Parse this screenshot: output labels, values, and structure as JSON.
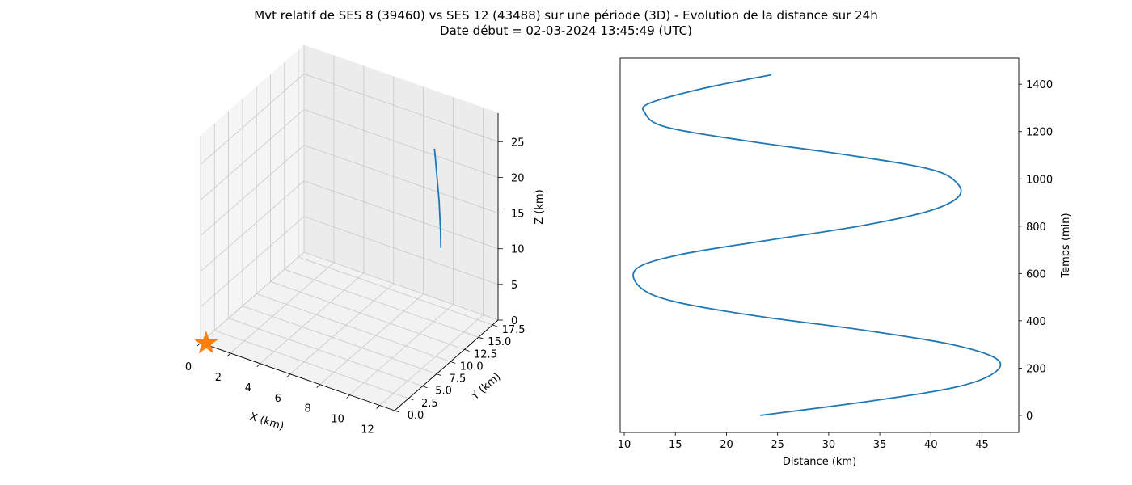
{
  "figure": {
    "title_line1": "Mvt relatif de SES 8 (39460) vs SES 12 (43488) sur une période (3D) - Evolution de la distance sur 24h",
    "title_line2": "Date début = 02-03-2024 13:45:49 (UTC)"
  },
  "chart_data": [
    {
      "type": "line",
      "projection": "3d",
      "xlabel": "X (km)",
      "ylabel": "Y (km)",
      "zlabel": "Z (km)",
      "xlim": [
        0,
        13
      ],
      "ylim": [
        0,
        18.5
      ],
      "zlim": [
        0,
        29
      ],
      "x_ticks": [
        0,
        2,
        4,
        6,
        8,
        10,
        12
      ],
      "x_tick_labels": [
        "0",
        "2",
        "4",
        "6",
        "8",
        "10",
        "12"
      ],
      "y_ticks": [
        0,
        2.5,
        5,
        7.5,
        10,
        12.5,
        15,
        17.5
      ],
      "y_tick_labels": [
        "0.0",
        "2.5",
        "5.0",
        "7.5",
        "10.0",
        "12.5",
        "15.0",
        "17.5"
      ],
      "z_ticks": [
        0,
        5,
        10,
        15,
        20,
        25
      ],
      "z_tick_labels": [
        "0",
        "5",
        "10",
        "15",
        "20",
        "25"
      ],
      "grid": true,
      "series": [
        {
          "color": "#1f77b4",
          "points": [
            {
              "x": 11.0,
              "y": 13.6,
              "z": 12.0
            },
            {
              "x": 11.1,
              "y": 13.3,
              "z": 14.5
            },
            {
              "x": 11.2,
              "y": 12.9,
              "z": 17.0
            },
            {
              "x": 11.3,
              "y": 12.5,
              "z": 19.5
            },
            {
              "x": 11.4,
              "y": 12.0,
              "z": 22.0
            },
            {
              "x": 11.5,
              "y": 11.5,
              "z": 24.5
            },
            {
              "x": 11.6,
              "y": 11.0,
              "z": 27.0
            },
            {
              "x": 11.7,
              "y": 10.6,
              "z": 28.5
            }
          ]
        }
      ],
      "marker": {
        "x": 0.3,
        "y": 0.2,
        "z": 0.0,
        "symbol": "star",
        "color": "#ff7f0e"
      }
    },
    {
      "type": "line",
      "xlabel": "Distance (km)",
      "ylabel": "Temps (min)",
      "xlim": [
        9.6,
        48.6
      ],
      "ylim": [
        -72,
        1510
      ],
      "x_ticks": [
        10,
        15,
        20,
        25,
        30,
        35,
        40,
        45
      ],
      "x_tick_labels": [
        "10",
        "15",
        "20",
        "25",
        "30",
        "35",
        "40",
        "45"
      ],
      "y_ticks": [
        0,
        200,
        400,
        600,
        800,
        1000,
        1200,
        1400
      ],
      "y_tick_labels": [
        "0",
        "200",
        "400",
        "600",
        "800",
        "1000",
        "1200",
        "1400"
      ],
      "y_axis_position": "right",
      "grid": false,
      "series": [
        {
          "color": "#1f77b4",
          "distance": [
            23.3,
            34.0,
            42.5,
            46.2,
            46.4,
            42.0,
            33.5,
            23.0,
            15.0,
            11.6,
            11.2,
            15.5,
            24.0,
            33.0,
            39.5,
            42.6,
            42.6,
            40.0,
            32.0,
            22.0,
            14.0,
            12.0,
            12.5,
            17.5,
            24.4
          ],
          "time": [
            0,
            60,
            120,
            180,
            240,
            300,
            360,
            420,
            480,
            540,
            620,
            680,
            740,
            800,
            860,
            920,
            980,
            1040,
            1100,
            1160,
            1220,
            1280,
            1320,
            1380,
            1440
          ]
        }
      ]
    }
  ]
}
